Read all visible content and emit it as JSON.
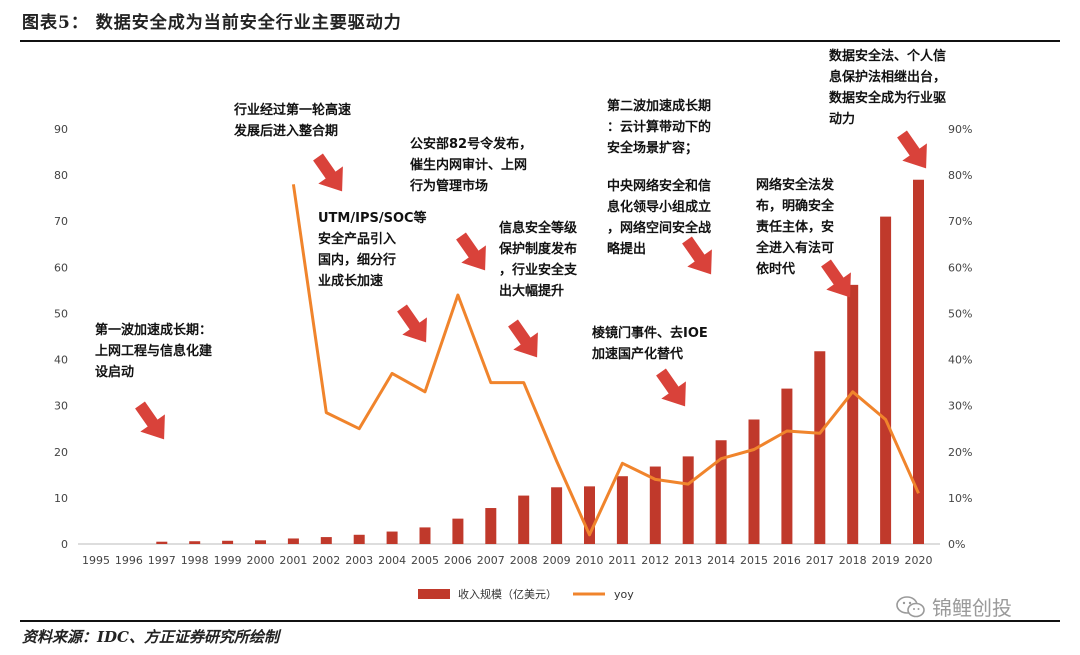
{
  "header": {
    "title": "图表5：  数据安全成为当前安全行业主要驱动力"
  },
  "footer": {
    "source": "资料来源：IDC、方正证券研究所绘制",
    "watermark": "锦鲤创投",
    "watermark_icon": "wechat-icon"
  },
  "colors": {
    "bar": "#c0392b",
    "line": "#f0842c",
    "arrow": "#d9423a"
  },
  "chart_data": {
    "type": "bar",
    "categories": [
      "1995",
      "1996",
      "1997",
      "1998",
      "1999",
      "2000",
      "2001",
      "2002",
      "2003",
      "2004",
      "2005",
      "2006",
      "2007",
      "2008",
      "2009",
      "2010",
      "2011",
      "2012",
      "2013",
      "2014",
      "2015",
      "2016",
      "2017",
      "2018",
      "2019",
      "2020"
    ],
    "series": [
      {
        "name": "收入规模（亿美元）",
        "type": "bar",
        "axis": "left",
        "values": [
          0,
          0,
          0.5,
          0.6,
          0.7,
          0.8,
          1.2,
          1.5,
          2.0,
          2.7,
          3.6,
          5.5,
          7.8,
          10.5,
          12.3,
          12.5,
          14.7,
          16.8,
          19.0,
          22.5,
          27.0,
          33.7,
          41.8,
          56.2,
          71.0,
          79.0
        ]
      },
      {
        "name": "yoy",
        "type": "line",
        "axis": "right",
        "values": [
          null,
          null,
          null,
          null,
          null,
          null,
          78,
          28.5,
          25,
          37,
          33,
          54,
          35,
          35,
          18,
          2,
          17.5,
          14,
          13,
          18.5,
          20.5,
          24.5,
          24,
          33,
          27,
          11
        ]
      }
    ],
    "left_axis": {
      "min": 0,
      "max": 90,
      "step": 10,
      "ticks": [
        "0",
        "10",
        "20",
        "30",
        "40",
        "50",
        "60",
        "70",
        "80",
        "90"
      ]
    },
    "right_axis": {
      "min": 0,
      "max": 90,
      "step": 10,
      "ticks": [
        "0%",
        "10%",
        "20%",
        "30%",
        "40%",
        "50%",
        "60%",
        "70%",
        "80%",
        "90%"
      ]
    },
    "legend_position": "bottom",
    "grid": false,
    "annotations": [
      {
        "id": "a1",
        "lines": [
          "第一波加速成长期：",
          "上网工程与信息化建",
          "设启动"
        ]
      },
      {
        "id": "a2",
        "lines": [
          "行业经过第一轮高速",
          "发展后进入整合期"
        ]
      },
      {
        "id": "a3",
        "lines": [
          "UTM/IPS/SOC等",
          "安全产品引入",
          "国内，细分行",
          "业成长加速"
        ]
      },
      {
        "id": "a4",
        "lines": [
          "公安部82号令发布，",
          "催生内网审计、上网",
          "行为管理市场"
        ]
      },
      {
        "id": "a5",
        "lines": [
          "信息安全等级",
          "保护制度发布",
          "，行业安全支",
          "出大幅提升"
        ]
      },
      {
        "id": "a6",
        "lines": [
          "第二波加速成长期",
          "：云计算带动下的",
          "安全场景扩容；"
        ]
      },
      {
        "id": "a7",
        "lines": [
          "中央网络安全和信",
          "息化领导小组成立",
          "，网络空间安全战",
          "略提出"
        ]
      },
      {
        "id": "a8",
        "lines": [
          "棱镜门事件、去IOE",
          "加速国产化替代"
        ]
      },
      {
        "id": "a9",
        "lines": [
          "网络安全法发",
          "布，明确安全",
          "责任主体，安",
          "全进入有法可",
          "依时代"
        ]
      },
      {
        "id": "a10",
        "lines": [
          "数据安全法、个人信",
          "息保护法相继出台，",
          "数据安全成为行业驱",
          "动力"
        ]
      }
    ]
  }
}
